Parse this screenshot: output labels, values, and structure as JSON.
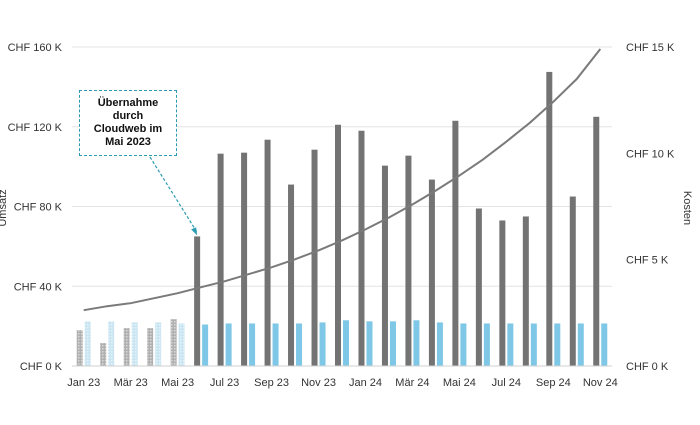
{
  "chart_data": {
    "type": "bar",
    "categories": [
      "Jan 23",
      "Feb 23",
      "Mär 23",
      "Apr 23",
      "Mai 23",
      "Jun 23",
      "Jul 23",
      "Aug 23",
      "Sep 23",
      "Okt 23",
      "Nov 23",
      "Dez 23",
      "Jan 24",
      "Feb 24",
      "Mär 24",
      "Apr 24",
      "Mai 24",
      "Jun 24",
      "Jul 24",
      "Aug 24",
      "Sep 24",
      "Okt 24",
      "Nov 24"
    ],
    "x_tick_labels": [
      "Jan 23",
      "Mär 23",
      "Mai 23",
      "Jul 23",
      "Sep 23",
      "Nov 23",
      "Jan 24",
      "Mär 24",
      "Mai 24",
      "Jul 24",
      "Sep 24",
      "Nov 24"
    ],
    "series": [
      {
        "axis": "left",
        "kind": "bar",
        "color": "#737373",
        "color_before_acquisition": "#b0b0b0",
        "values": [
          18,
          11.5,
          19,
          19,
          23.5,
          65,
          106.5,
          107,
          113.5,
          91,
          108.5,
          121,
          118,
          100.5,
          105.5,
          93.5,
          123,
          79,
          73,
          75,
          147.5,
          85,
          125
        ]
      },
      {
        "axis": "right",
        "kind": "bar",
        "color": "#7ec7e6",
        "color_before_acquisition": "#c8e5f1",
        "values": [
          2.1,
          2.1,
          2.05,
          2.05,
          2.0,
          1.95,
          2.0,
          2.0,
          2.0,
          2.0,
          2.05,
          2.15,
          2.1,
          2.1,
          2.15,
          2.05,
          2.0,
          2.0,
          2.0,
          2.0,
          2.0,
          2.0,
          2.0
        ]
      },
      {
        "axis": "left",
        "kind": "line",
        "color": "#7a7a7a",
        "values": [
          28,
          30,
          31.5,
          34,
          36.5,
          39.5,
          42.5,
          46,
          49.5,
          53.5,
          58,
          63,
          68.5,
          74.5,
          81,
          88,
          95.5,
          103.5,
          112.5,
          122,
          132.5,
          144,
          159
        ]
      }
    ],
    "acquisition_index": 5,
    "left_axis": {
      "title": "Umsatz",
      "ylim": [
        0,
        160
      ],
      "ticks": [
        0,
        40,
        80,
        120,
        160
      ],
      "tick_labels": [
        "CHF 0 K",
        "CHF 40 K",
        "CHF 80 K",
        "CHF 120 K",
        "CHF 160 K"
      ]
    },
    "right_axis": {
      "title": "Kosten",
      "ylim": [
        0,
        15
      ],
      "ticks": [
        0,
        5,
        10,
        15
      ],
      "tick_labels": [
        "CHF 0 K",
        "CHF 5 K",
        "CHF 10 K",
        "CHF 15 K"
      ]
    },
    "annotation": {
      "text": "Übernahme durch Cloudweb im Mai 2023",
      "target_index": 5,
      "color": "#2a9bb0"
    },
    "grid": true,
    "legend": "none"
  }
}
